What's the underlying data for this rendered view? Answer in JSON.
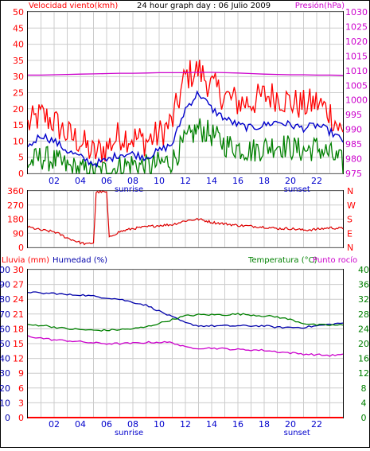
{
  "header": {
    "left_label": "Velocidad viento(kmh)",
    "title": "24 hour graph day : 06 Julio 2009",
    "right_label": "Presión(hPa)"
  },
  "colors": {
    "wind_gust": "#ff0000",
    "wind_avg": "#0000cc",
    "wind_min": "#008000",
    "pressure": "#cc00cc",
    "direction": "#dd0000",
    "humidity": "#0000aa",
    "temperature": "#008000",
    "dewpoint": "#cc00cc",
    "rain": "#ff0000",
    "grid": "#cccccc",
    "frame": "#000000"
  },
  "x_axis": {
    "ticks": [
      "02",
      "04",
      "06",
      "08",
      "10",
      "12",
      "14",
      "16",
      "18",
      "20",
      "22"
    ],
    "sunrise_label": "sunrise",
    "sunset_label": "sunset",
    "sunrise_hour": 7.7,
    "sunset_hour": 20.5
  },
  "panel3_labels": {
    "rain": "Lluvia (mm)",
    "humidity": "Humedad (%)",
    "temperature": "Temperatura (°C)",
    "dewpoint": "Punto rocío"
  },
  "chart_data": [
    {
      "type": "line",
      "x_unit": "hour",
      "y_left_label": "Velocidad viento(kmh)",
      "y_right_label": "Presión(hPa)",
      "ylim_left": [
        0,
        50
      ],
      "ylim_right": [
        975,
        1030
      ],
      "yticks_left": [
        0,
        5,
        10,
        15,
        20,
        25,
        30,
        35,
        40,
        45,
        50
      ],
      "yticks_right": [
        975,
        980,
        985,
        990,
        995,
        1000,
        1005,
        1010,
        1015,
        1020,
        1025,
        1030
      ],
      "series": [
        {
          "name": "Velocidad viento(kmh)",
          "color_key": "wind_avg",
          "x": [
            0,
            1,
            2,
            3,
            4,
            5,
            6,
            7,
            8,
            9,
            10,
            11,
            12,
            13,
            14,
            15,
            16,
            17,
            18,
            19,
            20,
            21,
            22,
            23,
            24
          ],
          "y": [
            8,
            12,
            10,
            7,
            5,
            3,
            4,
            6,
            6,
            5,
            7,
            9,
            20,
            25,
            20,
            17,
            15,
            14,
            15,
            16,
            15,
            14,
            15,
            13,
            10
          ]
        },
        {
          "name": "",
          "color_key": "wind_gust",
          "x": [
            0,
            1,
            2,
            3,
            4,
            5,
            6,
            7,
            8,
            9,
            10,
            11,
            12,
            13,
            14,
            15,
            16,
            17,
            18,
            19,
            20,
            21,
            22,
            23,
            24
          ],
          "y": [
            15,
            18,
            16,
            12,
            10,
            6,
            8,
            12,
            11,
            10,
            12,
            16,
            30,
            32,
            27,
            24,
            22,
            22,
            24,
            24,
            22,
            21,
            22,
            19,
            12
          ]
        },
        {
          "name": "",
          "color_key": "wind_min",
          "x": [
            0,
            1,
            2,
            3,
            4,
            5,
            6,
            7,
            8,
            9,
            10,
            11,
            12,
            13,
            14,
            15,
            16,
            17,
            18,
            19,
            20,
            21,
            22,
            23,
            24
          ],
          "y": [
            3,
            5,
            4,
            2,
            1,
            0,
            1,
            2,
            3,
            2,
            3,
            4,
            10,
            14,
            12,
            9,
            8,
            7,
            8,
            9,
            8,
            7,
            8,
            6,
            3
          ]
        },
        {
          "name": "Presión(hPa)",
          "color_key": "pressure",
          "axis": "right",
          "x": [
            0,
            1,
            2,
            3,
            4,
            5,
            6,
            7,
            8,
            9,
            10,
            11,
            12,
            13,
            14,
            15,
            16,
            17,
            18,
            19,
            20,
            21,
            22,
            23,
            24
          ],
          "y": [
            1008.5,
            1008.5,
            1008.6,
            1008.7,
            1008.8,
            1008.9,
            1009,
            1009.1,
            1009.1,
            1009.2,
            1009.3,
            1009.3,
            1009.3,
            1009.4,
            1009.4,
            1009.3,
            1009.2,
            1009,
            1008.8,
            1008.7,
            1008.6,
            1008.6,
            1008.5,
            1008.5,
            1008.4
          ]
        }
      ]
    },
    {
      "type": "line",
      "x_unit": "hour",
      "ylim_left": [
        0,
        360
      ],
      "yticks_left": [
        0,
        90,
        180,
        270,
        360
      ],
      "right_labels": [
        "N",
        "W",
        "S",
        "E",
        "N"
      ],
      "series": [
        {
          "name": "",
          "color_key": "direction",
          "x": [
            0,
            1,
            2,
            3,
            4,
            4.5,
            5,
            5.2,
            5.5,
            6.0,
            6.2,
            6.5,
            7,
            8,
            9,
            10,
            11,
            12,
            13,
            14,
            15,
            16,
            17,
            18,
            19,
            20,
            21,
            22,
            23,
            24
          ],
          "y": [
            130,
            110,
            100,
            60,
            30,
            20,
            30,
            350,
            355,
            350,
            60,
            80,
            100,
            120,
            130,
            140,
            145,
            170,
            180,
            160,
            150,
            140,
            135,
            130,
            120,
            120,
            110,
            115,
            125,
            120
          ]
        }
      ]
    },
    {
      "type": "line",
      "x_unit": "hour",
      "y_left_label": "Lluvia (mm) / Humedad (%)",
      "y_right_label": "Temperatura (°C)",
      "rain_ticks": [
        0,
        3,
        6,
        9,
        12,
        15,
        18,
        21,
        24,
        27,
        30
      ],
      "humidity_ticks": [
        0,
        10,
        20,
        30,
        40,
        50,
        60,
        70,
        80,
        90,
        100
      ],
      "temp_ticks": [
        0,
        4,
        8,
        12,
        16,
        20,
        24,
        28,
        32,
        36,
        40
      ],
      "ylim_temperature": [
        0,
        40
      ],
      "series": [
        {
          "name": "Humedad (%)",
          "color_key": "humidity",
          "axis": "humidity",
          "x": [
            0,
            1,
            2,
            3,
            4,
            5,
            6,
            7,
            8,
            9,
            10,
            11,
            12,
            13,
            14,
            15,
            16,
            17,
            18,
            19,
            20,
            21,
            22,
            23,
            24
          ],
          "y": [
            85,
            84,
            84,
            83,
            83,
            82,
            81,
            80,
            78,
            76,
            72,
            68,
            64,
            62,
            62,
            62,
            62,
            62,
            62,
            61,
            61,
            61,
            62,
            63,
            64
          ]
        },
        {
          "name": "Temperatura (°C)",
          "color_key": "temperature",
          "axis": "temperature",
          "x": [
            0,
            1,
            2,
            3,
            4,
            5,
            6,
            7,
            8,
            9,
            10,
            11,
            12,
            13,
            14,
            15,
            16,
            17,
            18,
            19,
            20,
            21,
            22,
            23,
            24
          ],
          "y": [
            25,
            25,
            24.5,
            24,
            23.8,
            23.6,
            23.6,
            23.8,
            24,
            24.5,
            25.5,
            26.5,
            27.5,
            27.8,
            27.8,
            27.8,
            28,
            27.8,
            27.5,
            27.2,
            26.5,
            25.5,
            25,
            25,
            25
          ]
        },
        {
          "name": "Punto rocío",
          "color_key": "dewpoint",
          "axis": "temperature",
          "x": [
            0,
            1,
            2,
            3,
            4,
            5,
            6,
            7,
            8,
            9,
            10,
            11,
            12,
            13,
            14,
            15,
            16,
            17,
            18,
            19,
            20,
            21,
            22,
            23,
            24
          ],
          "y": [
            22,
            21.5,
            21,
            20.8,
            20.5,
            20.2,
            20,
            20,
            20.1,
            20.3,
            20.4,
            20.3,
            19,
            18.8,
            18.8,
            18.6,
            18.4,
            18.3,
            18.2,
            17.8,
            17.5,
            17.2,
            17,
            16.8,
            17
          ]
        },
        {
          "name": "Lluvia (mm)",
          "color_key": "rain",
          "axis": "rain",
          "x": [
            0,
            24
          ],
          "y": [
            0,
            0
          ]
        }
      ]
    }
  ]
}
